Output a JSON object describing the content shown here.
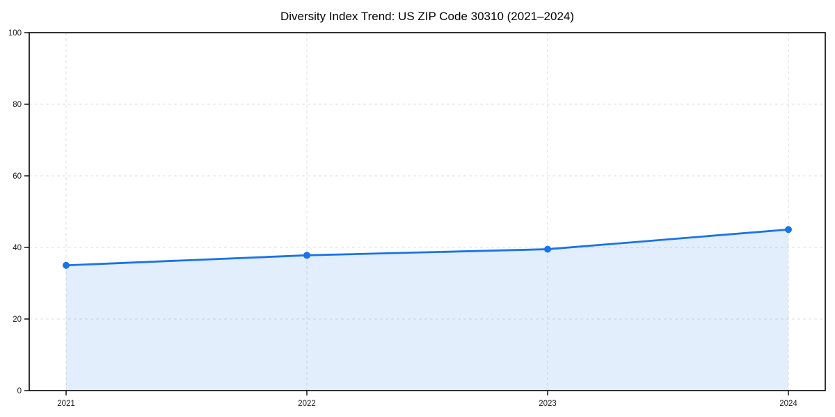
{
  "title": "Diversity Index Trend: US ZIP Code 30310 (2021–2024)",
  "chart_data": {
    "type": "area",
    "title": "Diversity Index Trend: US ZIP Code 30310 (2021–2024)",
    "x": [
      "2021",
      "2022",
      "2023",
      "2024"
    ],
    "series": [
      {
        "name": "Diversity Index",
        "values": [
          35,
          37.8,
          39.5,
          45
        ]
      }
    ],
    "xlabel": "",
    "ylabel": "",
    "ylim": [
      0,
      100
    ],
    "yticks": [
      0,
      20,
      40,
      60,
      80,
      100
    ],
    "grid": "dashed, both axes",
    "legend": "none",
    "colors": {
      "line": "#1a73e8",
      "marker": "#1a73e8",
      "fill": "#1a73e8",
      "fill_opacity": 0.12,
      "grid": "#dcdcdc",
      "axis": "#000000",
      "background": "#ffffff",
      "text": "#000000"
    }
  }
}
